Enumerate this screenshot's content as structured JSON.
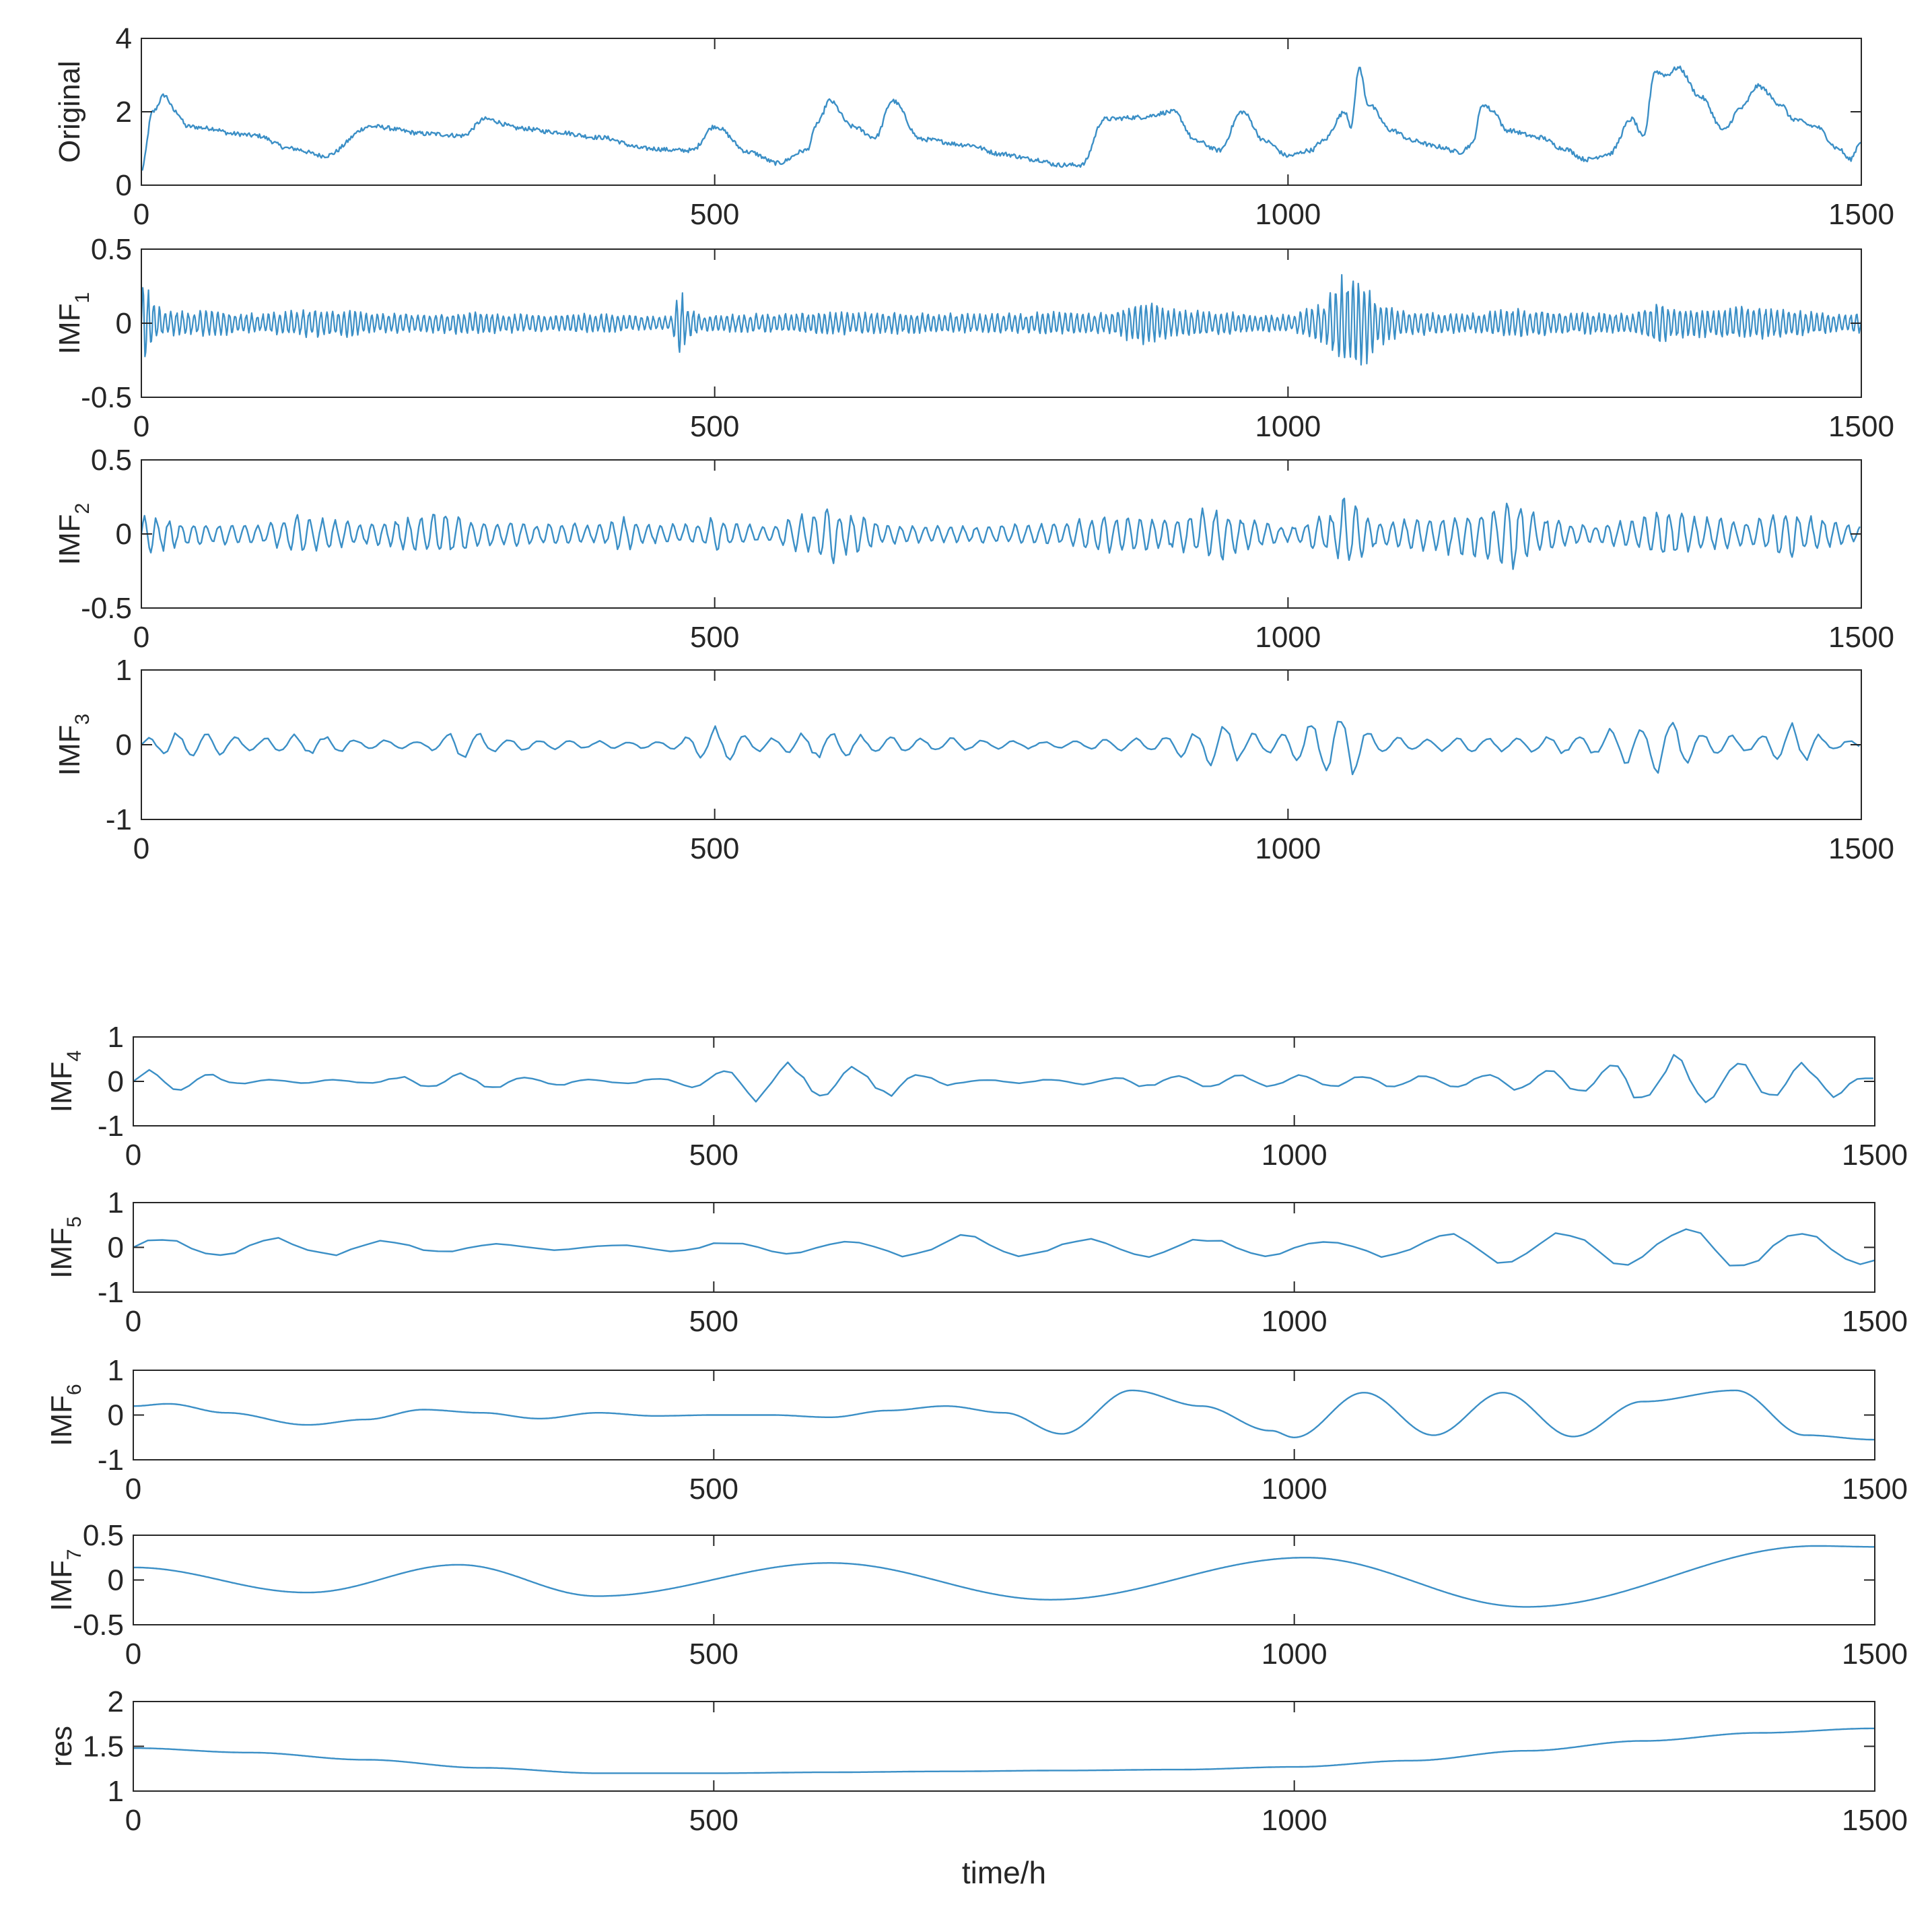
{
  "chart_data": {
    "type": "line",
    "line_color": "#3b8fc6",
    "axis_color": "#262626",
    "grid": false,
    "xlabel": "time/h",
    "panels": [
      {
        "id": "original",
        "ylabel_main": "Original",
        "ylabel_sub": "",
        "ylim": [
          0,
          4
        ],
        "yticks": [
          "0",
          "2",
          "4"
        ],
        "xlim": [
          0,
          1500
        ],
        "xticks": [
          "0",
          "500",
          "1000",
          "1500"
        ],
        "x": [
          0,
          10,
          20,
          30,
          40,
          60,
          80,
          100,
          130,
          160,
          200,
          250,
          280,
          300,
          330,
          360,
          400,
          440,
          470,
          480,
          500,
          530,
          555,
          580,
          590,
          600,
          620,
          640,
          655,
          680,
          720,
          750,
          780,
          800,
          820,
          840,
          870,
          900,
          920,
          940,
          960,
          980,
          1000,
          1020,
          1030,
          1050,
          1055,
          1062,
          1070,
          1090,
          1110,
          1130,
          1150,
          1160,
          1170,
          1180,
          1190,
          1220,
          1240,
          1260,
          1280,
          1300,
          1310,
          1320,
          1330,
          1340,
          1360,
          1380,
          1395,
          1410,
          1430,
          1440,
          1460,
          1480,
          1490,
          1500
        ],
        "values": [
          0.4,
          2.0,
          2.45,
          2.0,
          1.6,
          1.55,
          1.4,
          1.35,
          1.0,
          0.8,
          1.6,
          1.4,
          1.35,
          1.8,
          1.55,
          1.45,
          1.3,
          1.0,
          0.95,
          0.95,
          1.6,
          0.9,
          0.6,
          0.95,
          1.7,
          2.3,
          1.6,
          1.3,
          2.3,
          1.25,
          1.1,
          0.85,
          0.7,
          0.55,
          0.55,
          1.8,
          1.85,
          2.0,
          1.2,
          0.95,
          2.0,
          1.2,
          0.8,
          0.95,
          1.2,
          2.0,
          1.6,
          3.2,
          2.2,
          1.5,
          1.2,
          1.05,
          0.9,
          1.1,
          2.2,
          2.0,
          1.5,
          1.3,
          1.0,
          0.7,
          0.85,
          1.8,
          1.3,
          3.1,
          3.0,
          3.2,
          2.4,
          1.5,
          2.1,
          2.7,
          2.2,
          1.8,
          1.6,
          1.0,
          0.7,
          1.2
        ]
      },
      {
        "id": "imf1",
        "ylabel_main": "IMF",
        "ylabel_sub": "1",
        "ylim": [
          -0.5,
          0.5
        ],
        "yticks": [
          "-0.5",
          "0",
          "0.5"
        ],
        "xlim": [
          0,
          1500
        ],
        "xticks": [
          "0",
          "500",
          "1000",
          "1500"
        ],
        "envelope_x": [
          0,
          20,
          60,
          100,
          150,
          180,
          200,
          250,
          300,
          350,
          400,
          440,
          460,
          470,
          480,
          490,
          500,
          560,
          620,
          700,
          760,
          800,
          840,
          860,
          880,
          900,
          940,
          1000,
          1030,
          1040,
          1050,
          1055,
          1065,
          1080,
          1100,
          1150,
          1200,
          1240,
          1300,
          1320,
          1350,
          1400,
          1440,
          1480,
          1500
        ],
        "envelope_amp": [
          0.3,
          0.09,
          0.09,
          0.07,
          0.1,
          0.1,
          0.07,
          0.07,
          0.08,
          0.06,
          0.07,
          0.05,
          0.05,
          0.22,
          0.1,
          0.06,
          0.06,
          0.07,
          0.08,
          0.07,
          0.07,
          0.08,
          0.08,
          0.12,
          0.16,
          0.1,
          0.08,
          0.06,
          0.14,
          0.25,
          0.36,
          0.36,
          0.3,
          0.16,
          0.09,
          0.07,
          0.1,
          0.08,
          0.07,
          0.14,
          0.1,
          0.12,
          0.1,
          0.07,
          0.07
        ],
        "cycle_length": 5
      },
      {
        "id": "imf2",
        "ylabel_main": "IMF",
        "ylabel_sub": "2",
        "ylim": [
          -0.5,
          0.5
        ],
        "yticks": [
          "-0.5",
          "0",
          "0.5"
        ],
        "xlim": [
          0,
          1500
        ],
        "xticks": [
          "0",
          "500",
          "1000",
          "1500"
        ],
        "envelope_x": [
          0,
          50,
          100,
          140,
          200,
          240,
          260,
          300,
          350,
          400,
          420,
          440,
          480,
          500,
          540,
          580,
          600,
          620,
          660,
          700,
          760,
          800,
          840,
          900,
          940,
          960,
          1000,
          1040,
          1050,
          1060,
          1080,
          1120,
          1160,
          1200,
          1220,
          1260,
          1300,
          1330,
          1360,
          1400,
          1440,
          1460,
          1500
        ],
        "envelope_amp": [
          0.15,
          0.08,
          0.07,
          0.14,
          0.08,
          0.13,
          0.18,
          0.1,
          0.08,
          0.07,
          0.12,
          0.07,
          0.07,
          0.12,
          0.06,
          0.15,
          0.22,
          0.14,
          0.07,
          0.06,
          0.07,
          0.08,
          0.14,
          0.12,
          0.2,
          0.12,
          0.06,
          0.16,
          0.27,
          0.22,
          0.1,
          0.12,
          0.17,
          0.27,
          0.14,
          0.07,
          0.1,
          0.18,
          0.12,
          0.1,
          0.18,
          0.12,
          0.06
        ],
        "cycle_length": 11
      },
      {
        "id": "imf3",
        "ylabel_main": "IMF",
        "ylabel_sub": "3",
        "ylim": [
          -1,
          1
        ],
        "yticks": [
          "-1",
          "0",
          "1"
        ],
        "xlim": [
          0,
          1500
        ],
        "xticks": [
          "0",
          "500",
          "1000",
          "1500"
        ],
        "envelope_x": [
          0,
          40,
          100,
          140,
          200,
          240,
          280,
          320,
          380,
          420,
          460,
          500,
          540,
          600,
          640,
          700,
          760,
          800,
          840,
          880,
          920,
          940,
          980,
          1010,
          1040,
          1055,
          1080,
          1120,
          1200,
          1260,
          1300,
          1330,
          1360,
          1400,
          1440,
          1480,
          1500
        ],
        "envelope_amp": [
          0.1,
          0.2,
          0.1,
          0.15,
          0.08,
          0.05,
          0.22,
          0.1,
          0.06,
          0.05,
          0.06,
          0.25,
          0.1,
          0.22,
          0.12,
          0.1,
          0.06,
          0.05,
          0.08,
          0.1,
          0.2,
          0.33,
          0.15,
          0.3,
          0.55,
          0.45,
          0.12,
          0.1,
          0.1,
          0.15,
          0.28,
          0.45,
          0.2,
          0.12,
          0.3,
          0.08,
          0.05
        ],
        "cycle_length": 26
      },
      {
        "id": "imf4",
        "ylabel_main": "IMF",
        "ylabel_sub": "4",
        "ylim": [
          -1,
          1
        ],
        "yticks": [
          "-1",
          "0",
          "1"
        ],
        "xlim": [
          0,
          1500
        ],
        "xticks": [
          "0",
          "500",
          "1000",
          "1500"
        ],
        "envelope_x": [
          0,
          50,
          100,
          200,
          240,
          300,
          350,
          400,
          460,
          500,
          550,
          600,
          640,
          680,
          720,
          780,
          820,
          880,
          940,
          1000,
          1060,
          1120,
          1180,
          1220,
          1260,
          1300,
          1340,
          1380,
          1420,
          1460,
          1500
        ],
        "envelope_amp": [
          0.3,
          0.25,
          0.05,
          0.05,
          0.15,
          0.2,
          0.12,
          0.05,
          0.1,
          0.3,
          0.5,
          0.5,
          0.4,
          0.2,
          0.05,
          0.05,
          0.08,
          0.15,
          0.15,
          0.15,
          0.15,
          0.15,
          0.2,
          0.3,
          0.4,
          0.6,
          0.65,
          0.5,
          0.55,
          0.4,
          0.1
        ],
        "cycle_length": 55
      },
      {
        "id": "imf5",
        "ylabel_main": "IMF",
        "ylabel_sub": "5",
        "ylim": [
          -1,
          1
        ],
        "yticks": [
          "-1",
          "0",
          "1"
        ],
        "xlim": [
          0,
          1500
        ],
        "xticks": [
          "0",
          "500",
          "1000",
          "1500"
        ],
        "envelope_x": [
          0,
          50,
          100,
          200,
          300,
          400,
          500,
          600,
          650,
          700,
          800,
          900,
          1000,
          1100,
          1150,
          1200,
          1300,
          1400,
          1450,
          1500
        ],
        "envelope_amp": [
          0.3,
          0.3,
          0.25,
          0.2,
          0.1,
          0.05,
          0.15,
          0.15,
          0.2,
          0.3,
          0.2,
          0.25,
          0.2,
          0.25,
          0.35,
          0.45,
          0.5,
          0.55,
          0.55,
          0.5
        ],
        "cycle_length": 100
      },
      {
        "id": "imf6",
        "ylabel_main": "IMF",
        "ylabel_sub": "6",
        "ylim": [
          -1,
          1
        ],
        "yticks": [
          "-1",
          "0",
          "1"
        ],
        "xlim": [
          0,
          1500
        ],
        "xticks": [
          "0",
          "500",
          "1000",
          "1500"
        ],
        "x": [
          0,
          30,
          80,
          150,
          200,
          250,
          300,
          350,
          400,
          450,
          500,
          550,
          600,
          650,
          700,
          750,
          800,
          860,
          920,
          980,
          1000,
          1060,
          1120,
          1180,
          1240,
          1300,
          1380,
          1440,
          1500
        ],
        "values": [
          0.2,
          0.25,
          0.05,
          -0.22,
          -0.1,
          0.12,
          0.05,
          -0.08,
          0.05,
          -0.02,
          0.0,
          0.0,
          -0.05,
          0.1,
          0.2,
          0.05,
          -0.42,
          0.55,
          0.2,
          -0.35,
          -0.5,
          0.5,
          -0.45,
          0.5,
          -0.48,
          0.3,
          0.55,
          -0.45,
          -0.55
        ]
      },
      {
        "id": "imf7",
        "ylabel_main": "IMF",
        "ylabel_sub": "7",
        "ylim": [
          -0.5,
          0.5
        ],
        "yticks": [
          "-0.5",
          "0",
          "0.5"
        ],
        "xlim": [
          0,
          1500
        ],
        "xticks": [
          "0",
          "500",
          "1000",
          "1500"
        ],
        "x": [
          0,
          150,
          280,
          400,
          600,
          790,
          1010,
          1200,
          1450,
          1500
        ],
        "values": [
          0.14,
          -0.14,
          0.17,
          -0.18,
          0.19,
          -0.22,
          0.25,
          -0.3,
          0.38,
          0.37
        ]
      },
      {
        "id": "res",
        "ylabel_main": "res",
        "ylabel_sub": "",
        "ylim": [
          1,
          2
        ],
        "yticks": [
          "1",
          "1.5",
          "2"
        ],
        "xlim": [
          0,
          1500
        ],
        "xticks": [
          "0",
          "500",
          "1000",
          "1500"
        ],
        "x": [
          0,
          100,
          200,
          300,
          400,
          500,
          600,
          700,
          800,
          900,
          1000,
          1100,
          1200,
          1300,
          1400,
          1500
        ],
        "values": [
          1.48,
          1.43,
          1.35,
          1.26,
          1.2,
          1.2,
          1.21,
          1.22,
          1.23,
          1.24,
          1.27,
          1.34,
          1.45,
          1.56,
          1.65,
          1.7
        ]
      }
    ]
  }
}
